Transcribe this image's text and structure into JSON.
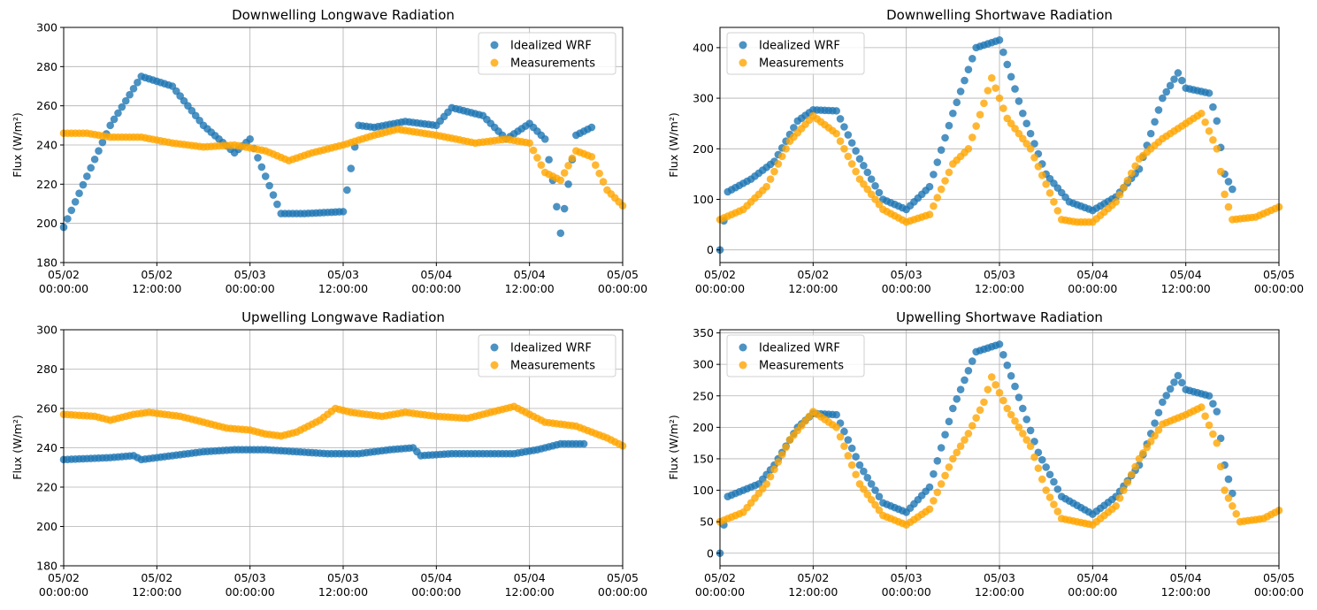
{
  "x_ticks": [
    {
      "t": 0,
      "line1": "05/02",
      "line2": "00:00:00"
    },
    {
      "t": 12,
      "line1": "05/02",
      "line2": "12:00:00"
    },
    {
      "t": 24,
      "line1": "05/03",
      "line2": "00:00:00"
    },
    {
      "t": 36,
      "line1": "05/03",
      "line2": "12:00:00"
    },
    {
      "t": 48,
      "line1": "05/04",
      "line2": "00:00:00"
    },
    {
      "t": 60,
      "line1": "05/04",
      "line2": "12:00:00"
    },
    {
      "t": 72,
      "line1": "05/05",
      "line2": "00:00:00"
    }
  ],
  "colors": {
    "wrf": "#1f77b4",
    "meas": "#ffa500",
    "grid": "#b0b0b0"
  },
  "chart_data": [
    {
      "id": "dlw",
      "type": "scatter",
      "title": "Downwelling Longwave Radiation",
      "ylabel": "Flux (W/m²)",
      "xlim": [
        0,
        72
      ],
      "ylim": [
        180,
        300
      ],
      "yticks": [
        180,
        200,
        220,
        240,
        260,
        280,
        300
      ],
      "legend": "top-right",
      "series": [
        {
          "name": "Idealized WRF",
          "color_key": "wrf",
          "points": [
            [
              0,
              198
            ],
            [
              6,
              250
            ],
            [
              10,
              275
            ],
            [
              14,
              270
            ],
            [
              18,
              250
            ],
            [
              22,
              236
            ],
            [
              24,
              243
            ],
            [
              28,
              205
            ],
            [
              31,
              205
            ],
            [
              36,
              206
            ],
            [
              38,
              250
            ],
            [
              40,
              249
            ],
            [
              44,
              252
            ],
            [
              48,
              250
            ],
            [
              50,
              259
            ],
            [
              54,
              255
            ],
            [
              57,
              243
            ],
            [
              60,
              251
            ],
            [
              62,
              243
            ],
            [
              63,
              222
            ],
            [
              64,
              195
            ],
            [
              66,
              245
            ],
            [
              68,
              249
            ]
          ]
        },
        {
          "name": "Measurements",
          "color_key": "meas",
          "points": [
            [
              0,
              246
            ],
            [
              3,
              246
            ],
            [
              6,
              244
            ],
            [
              10,
              244
            ],
            [
              14,
              241
            ],
            [
              18,
              239
            ],
            [
              22,
              240
            ],
            [
              26,
              237
            ],
            [
              29,
              232
            ],
            [
              32,
              236
            ],
            [
              36,
              240
            ],
            [
              40,
              245
            ],
            [
              43,
              248
            ],
            [
              48,
              245
            ],
            [
              53,
              241
            ],
            [
              57,
              243
            ],
            [
              60,
              241
            ],
            [
              62,
              226
            ],
            [
              64,
              222
            ],
            [
              66,
              237
            ],
            [
              68,
              234
            ],
            [
              70,
              217
            ],
            [
              72,
              209
            ]
          ]
        }
      ]
    },
    {
      "id": "dsw",
      "type": "scatter",
      "title": "Downwelling Shortwave Radiation",
      "ylabel": "Flux (W/m²)",
      "xlim": [
        0,
        72
      ],
      "ylim": [
        -25,
        440
      ],
      "yticks": [
        0,
        100,
        200,
        300,
        400
      ],
      "legend": "top-left",
      "series": [
        {
          "name": "Idealized WRF",
          "color_key": "wrf",
          "points": [
            [
              0,
              0
            ],
            [
              1,
              115
            ],
            [
              4,
              140
            ],
            [
              7,
              175
            ],
            [
              10,
              255
            ],
            [
              12,
              277
            ],
            [
              15,
              275
            ],
            [
              18,
              180
            ],
            [
              21,
              100
            ],
            [
              24,
              80
            ],
            [
              27,
              125
            ],
            [
              30,
              270
            ],
            [
              33,
              400
            ],
            [
              36,
              415
            ],
            [
              39,
              270
            ],
            [
              42,
              150
            ],
            [
              45,
              95
            ],
            [
              48,
              78
            ],
            [
              51,
              105
            ],
            [
              54,
              160
            ],
            [
              57,
              300
            ],
            [
              59,
              350
            ],
            [
              60,
              320
            ],
            [
              63,
              310
            ],
            [
              64,
              255
            ],
            [
              65,
              150
            ],
            [
              66,
              120
            ]
          ]
        },
        {
          "name": "Measurements",
          "color_key": "meas",
          "points": [
            [
              0,
              60
            ],
            [
              3,
              80
            ],
            [
              6,
              125
            ],
            [
              9,
              215
            ],
            [
              12,
              265
            ],
            [
              15,
              230
            ],
            [
              18,
              140
            ],
            [
              21,
              80
            ],
            [
              24,
              55
            ],
            [
              27,
              70
            ],
            [
              30,
              170
            ],
            [
              32,
              200
            ],
            [
              34,
              290
            ],
            [
              35,
              340
            ],
            [
              37,
              260
            ],
            [
              40,
              200
            ],
            [
              42,
              130
            ],
            [
              44,
              60
            ],
            [
              46,
              55
            ],
            [
              48,
              55
            ],
            [
              51,
              95
            ],
            [
              54,
              180
            ],
            [
              57,
              220
            ],
            [
              60,
              250
            ],
            [
              62,
              270
            ],
            [
              64,
              200
            ],
            [
              65,
              110
            ],
            [
              66,
              60
            ],
            [
              69,
              65
            ],
            [
              72,
              85
            ]
          ]
        }
      ]
    },
    {
      "id": "ulw",
      "type": "scatter",
      "title": "Upwelling Longwave Radiation",
      "ylabel": "Flux (W/m²)",
      "xlim": [
        0,
        72
      ],
      "ylim": [
        180,
        300
      ],
      "yticks": [
        180,
        200,
        220,
        240,
        260,
        280,
        300
      ],
      "legend": "top-right",
      "series": [
        {
          "name": "Idealized WRF",
          "color_key": "wrf",
          "points": [
            [
              0,
              234
            ],
            [
              6,
              235
            ],
            [
              9,
              236
            ],
            [
              10,
              234
            ],
            [
              14,
              236
            ],
            [
              18,
              238
            ],
            [
              22,
              239
            ],
            [
              26,
              239
            ],
            [
              30,
              238
            ],
            [
              34,
              237
            ],
            [
              38,
              237
            ],
            [
              42,
              239
            ],
            [
              45,
              240
            ],
            [
              46,
              236
            ],
            [
              50,
              237
            ],
            [
              55,
              237
            ],
            [
              58,
              237
            ],
            [
              61,
              239
            ],
            [
              64,
              242
            ],
            [
              67,
              242
            ]
          ]
        },
        {
          "name": "Measurements",
          "color_key": "meas",
          "points": [
            [
              0,
              257
            ],
            [
              4,
              256
            ],
            [
              6,
              254
            ],
            [
              9,
              257
            ],
            [
              11,
              258
            ],
            [
              15,
              256
            ],
            [
              18,
              253
            ],
            [
              21,
              250
            ],
            [
              24,
              249
            ],
            [
              26,
              247
            ],
            [
              28,
              246
            ],
            [
              30,
              248
            ],
            [
              33,
              254
            ],
            [
              35,
              260
            ],
            [
              37,
              258
            ],
            [
              41,
              256
            ],
            [
              44,
              258
            ],
            [
              48,
              256
            ],
            [
              52,
              255
            ],
            [
              55,
              258
            ],
            [
              58,
              261
            ],
            [
              60,
              257
            ],
            [
              62,
              253
            ],
            [
              64,
              252
            ],
            [
              66,
              251
            ],
            [
              68,
              248
            ],
            [
              70,
              245
            ],
            [
              72,
              241
            ]
          ]
        }
      ]
    },
    {
      "id": "usw",
      "type": "scatter",
      "title": "Upwelling Shortwave Radiation",
      "ylabel": "Flux (W/m²)",
      "xlim": [
        0,
        72
      ],
      "ylim": [
        -20,
        355
      ],
      "yticks": [
        0,
        50,
        100,
        150,
        200,
        250,
        300,
        350
      ],
      "legend": "top-left",
      "series": [
        {
          "name": "Idealized WRF",
          "color_key": "wrf",
          "points": [
            [
              0,
              0
            ],
            [
              1,
              90
            ],
            [
              3,
              100
            ],
            [
              5,
              110
            ],
            [
              7,
              140
            ],
            [
              10,
              200
            ],
            [
              12,
              222
            ],
            [
              15,
              220
            ],
            [
              18,
              140
            ],
            [
              21,
              80
            ],
            [
              24,
              65
            ],
            [
              27,
              105
            ],
            [
              30,
              230
            ],
            [
              33,
              320
            ],
            [
              36,
              332
            ],
            [
              38,
              265
            ],
            [
              41,
              160
            ],
            [
              44,
              90
            ],
            [
              48,
              62
            ],
            [
              51,
              90
            ],
            [
              54,
              140
            ],
            [
              57,
              240
            ],
            [
              59,
              282
            ],
            [
              60,
              260
            ],
            [
              63,
              250
            ],
            [
              64,
              225
            ],
            [
              65,
              140
            ],
            [
              66,
              95
            ]
          ]
        },
        {
          "name": "Measurements",
          "color_key": "meas",
          "points": [
            [
              0,
              50
            ],
            [
              3,
              65
            ],
            [
              6,
              110
            ],
            [
              9,
              180
            ],
            [
              12,
              225
            ],
            [
              15,
              200
            ],
            [
              18,
              110
            ],
            [
              21,
              60
            ],
            [
              24,
              45
            ],
            [
              27,
              70
            ],
            [
              30,
              150
            ],
            [
              32,
              190
            ],
            [
              34,
              240
            ],
            [
              35,
              280
            ],
            [
              37,
              230
            ],
            [
              40,
              170
            ],
            [
              42,
              100
            ],
            [
              44,
              55
            ],
            [
              46,
              50
            ],
            [
              48,
              45
            ],
            [
              51,
              75
            ],
            [
              54,
              150
            ],
            [
              57,
              205
            ],
            [
              60,
              220
            ],
            [
              62,
              232
            ],
            [
              64,
              175
            ],
            [
              65,
              100
            ],
            [
              67,
              50
            ],
            [
              70,
              55
            ],
            [
              72,
              68
            ]
          ]
        }
      ]
    }
  ]
}
